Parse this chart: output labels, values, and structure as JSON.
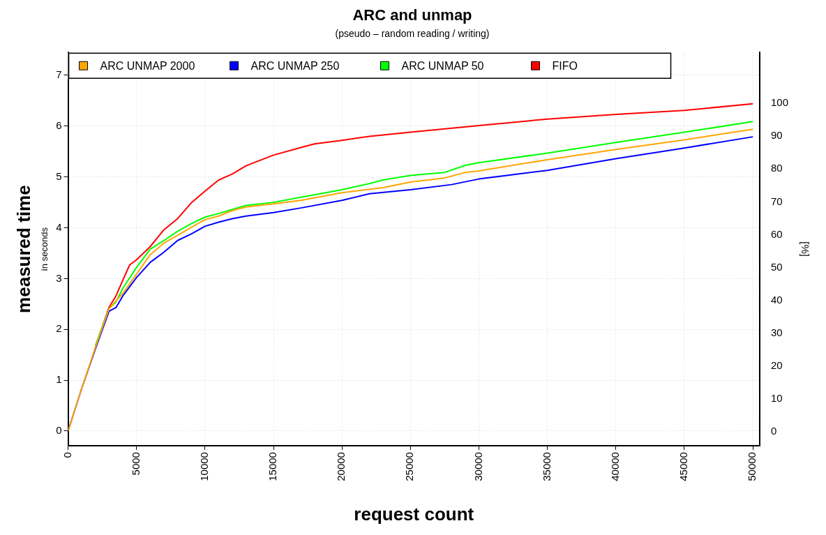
{
  "chart_data": {
    "type": "line",
    "title": "ARC and unmap",
    "subtitle": "(pseudo – random reading / writing)",
    "xlabel": "request count",
    "ylabel": "measured time",
    "y2label": "[%]",
    "annotations": [
      "in seconds"
    ],
    "xlim": [
      0,
      50500
    ],
    "xticks": [
      0,
      5000,
      10000,
      15000,
      20000,
      25000,
      30000,
      35000,
      40000,
      45000,
      50000
    ],
    "ylim": [
      -0.29,
      7.45
    ],
    "yticks": [
      0,
      1,
      2,
      3,
      4,
      5,
      6,
      7
    ],
    "y2lim": [
      -4.3,
      115.5
    ],
    "y2ticks": [
      0,
      10,
      20,
      30,
      40,
      50,
      60,
      70,
      80,
      90,
      100
    ],
    "grid": true,
    "legend": "top left",
    "marker": "none",
    "line_style": "solid",
    "series": [
      {
        "name": "ARC UNMAP 2000",
        "color": "#ffa500",
        "x": [
          0,
          1000,
          2000,
          3000,
          4000,
          5000,
          6000,
          7000,
          8000,
          9000,
          10000,
          11000,
          12000,
          13000,
          15000,
          17000,
          20000,
          23000,
          25000,
          27500,
          29000,
          30000,
          35000,
          40000,
          45000,
          50000
        ],
        "values": [
          0,
          0.84,
          1.65,
          2.41,
          2.71,
          3.09,
          3.47,
          3.7,
          3.85,
          4.01,
          4.16,
          4.23,
          4.34,
          4.41,
          4.47,
          4.54,
          4.69,
          4.79,
          4.9,
          4.98,
          5.09,
          5.12,
          5.34,
          5.54,
          5.73,
          5.94
        ]
      },
      {
        "name": "ARC UNMAP 250",
        "color": "#0000ff",
        "x": [
          0,
          1000,
          2000,
          3000,
          3500,
          4000,
          5000,
          6000,
          7000,
          8000,
          9000,
          10000,
          11000,
          12000,
          13000,
          15000,
          17000,
          20000,
          22000,
          25000,
          28000,
          30000,
          35000,
          40000,
          45000,
          50000
        ],
        "values": [
          0,
          0.84,
          1.62,
          2.36,
          2.43,
          2.66,
          3.02,
          3.32,
          3.52,
          3.75,
          3.88,
          4.03,
          4.11,
          4.18,
          4.23,
          4.3,
          4.39,
          4.54,
          4.67,
          4.75,
          4.85,
          4.96,
          5.13,
          5.36,
          5.57,
          5.79
        ]
      },
      {
        "name": "ARC UNMAP 50",
        "color": "#00ff00",
        "x": [
          2000,
          3000,
          3500,
          4000,
          5000,
          6000,
          7000,
          8000,
          9000,
          10000,
          11000,
          12000,
          13000,
          15000,
          17000,
          18000,
          20000,
          22000,
          23000,
          25000,
          27500,
          29000,
          30000,
          35000,
          40000,
          45000,
          50000
        ],
        "values": [
          1.68,
          2.41,
          2.54,
          2.81,
          3.22,
          3.58,
          3.75,
          3.93,
          4.08,
          4.21,
          4.28,
          4.36,
          4.44,
          4.5,
          4.6,
          4.65,
          4.75,
          4.87,
          4.94,
          5.03,
          5.09,
          5.23,
          5.28,
          5.47,
          5.68,
          5.88,
          6.09
        ]
      },
      {
        "name": "FIFO",
        "color": "#ff0000",
        "x": [
          2000,
          3000,
          3500,
          4000,
          4500,
          5000,
          6000,
          7000,
          8000,
          9000,
          10000,
          11000,
          12000,
          13000,
          15000,
          17000,
          18000,
          20000,
          22000,
          25000,
          30000,
          35000,
          40000,
          45000,
          50000
        ],
        "values": [
          1.66,
          2.44,
          2.66,
          2.97,
          3.27,
          3.37,
          3.63,
          3.96,
          4.18,
          4.49,
          4.72,
          4.94,
          5.06,
          5.22,
          5.43,
          5.58,
          5.65,
          5.72,
          5.8,
          5.88,
          6.01,
          6.14,
          6.23,
          6.31,
          6.44
        ]
      }
    ]
  }
}
